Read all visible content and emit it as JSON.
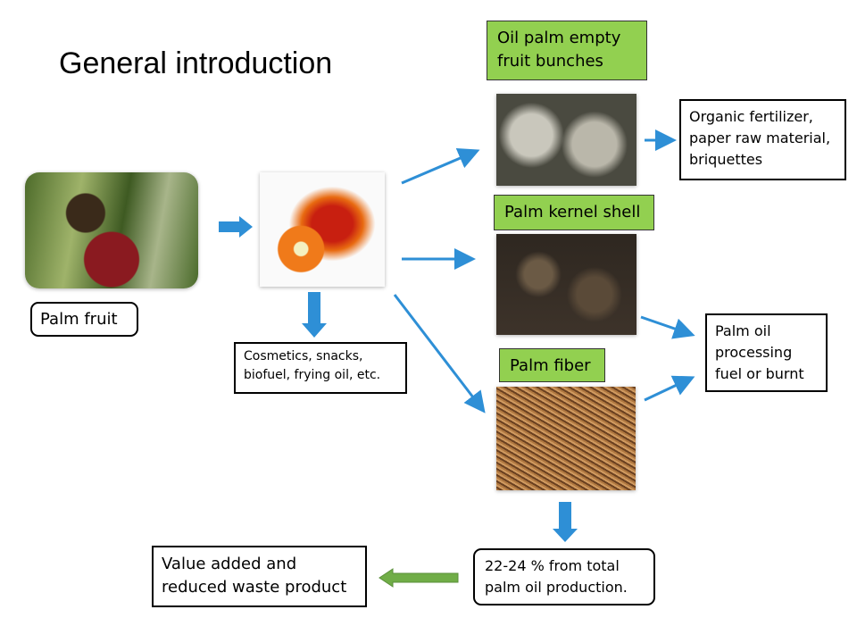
{
  "title": "General introduction",
  "palm_fruit_label": "Palm fruit",
  "uses_label": "Cosmetics, snacks, biofuel, frying oil, etc.",
  "efb": {
    "label": "Oil palm empty fruit bunches",
    "use": "Organic fertilizer, paper raw material, briquettes"
  },
  "shell": {
    "label": "Palm kernel shell"
  },
  "fiber": {
    "label": "Palm fiber"
  },
  "fuel_label": "Palm oil processing fuel or burnt",
  "share_label": "22-24 % from total palm oil production.",
  "value_label": "Value added and reduced waste product",
  "colors": {
    "green_box": "#92d050",
    "arrow_blue": "#2e8fd6",
    "arrow_green": "#70ad47"
  }
}
